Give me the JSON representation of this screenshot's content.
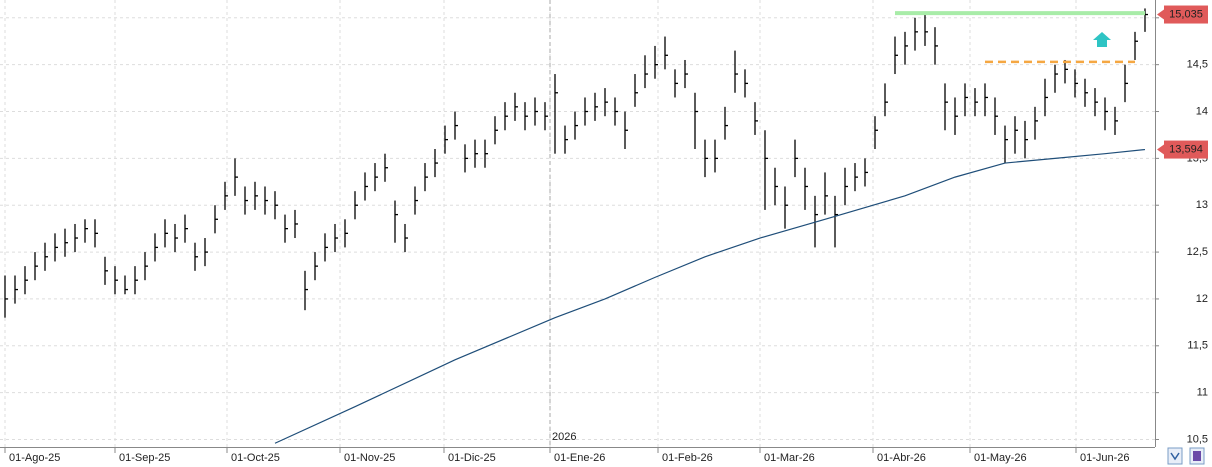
{
  "chart_data": {
    "type": "ohlc",
    "xlim": [
      -0.5,
      115
    ],
    "ylim": [
      10.42,
      15.19
    ],
    "yticks": [
      {
        "value": 10.5,
        "label": "10,5"
      },
      11,
      {
        "value": 11.5,
        "label": "11,5"
      },
      12,
      {
        "value": 12.5,
        "label": "12,5"
      },
      13,
      {
        "value": 13.5,
        "label": "13,5"
      },
      14,
      {
        "value": 14.5,
        "label": "14,5"
      },
      15
    ],
    "xticks": [
      {
        "value": 0,
        "label": "01-Ago-25"
      },
      {
        "value": 11,
        "label": "01-Sep-25"
      },
      {
        "value": 22.2,
        "label": "01-Oct-25"
      },
      {
        "value": 33.5,
        "label": "01-Nov-25"
      },
      {
        "value": 43.9,
        "label": "01-Dic-25"
      },
      {
        "value": 54.5,
        "label": "01-Ene-26"
      },
      {
        "value": 65.3,
        "label": "01-Feb-26"
      },
      {
        "value": 75.5,
        "label": "01-Mar-26"
      },
      {
        "value": 86.8,
        "label": "01-Abr-26"
      },
      {
        "value": 96.5,
        "label": "01-May-26"
      },
      {
        "value": 107.1,
        "label": "01-Jun-26"
      }
    ],
    "year_marker": {
      "value": 54.5,
      "label": "2026"
    },
    "grid": true,
    "bar_color": "#000000",
    "high": [
      12.25,
      12.25,
      12.35,
      12.5,
      12.6,
      12.7,
      12.75,
      12.8,
      12.85,
      12.85,
      12.45,
      12.35,
      12.25,
      12.35,
      12.5,
      12.7,
      12.85,
      12.8,
      12.9,
      12.6,
      12.65,
      13.0,
      13.25,
      13.5,
      13.2,
      13.25,
      13.2,
      13.15,
      12.9,
      12.95,
      12.3,
      12.5,
      12.7,
      12.8,
      12.85,
      13.15,
      13.35,
      13.45,
      13.55,
      13.05,
      12.8,
      13.2,
      13.45,
      13.6,
      13.85,
      14.0,
      13.65,
      13.7,
      13.7,
      13.95,
      14.1,
      14.2,
      14.1,
      14.15,
      14.1,
      14.4,
      13.85,
      14.0,
      14.15,
      14.2,
      14.25,
      14.15,
      14.0,
      14.4,
      14.6,
      14.7,
      14.8,
      14.45,
      14.55,
      14.2,
      13.7,
      13.7,
      14.05,
      14.65,
      14.45,
      14.1,
      13.8,
      13.4,
      13.2,
      13.7,
      13.4,
      13.1,
      13.35,
      13.1,
      13.4,
      13.45,
      13.5,
      13.95,
      14.3,
      14.8,
      14.85,
      15.0,
      15.05,
      14.9,
      14.3,
      14.15,
      14.3,
      14.25,
      14.3,
      14.15,
      13.85,
      13.95,
      13.9,
      14.05,
      14.35,
      14.5,
      14.55,
      14.45,
      14.35,
      14.25,
      14.15,
      14.05,
      14.5,
      14.85,
      15.1
    ],
    "low": [
      11.8,
      11.95,
      12.05,
      12.2,
      12.3,
      12.4,
      12.45,
      12.5,
      12.6,
      12.55,
      12.15,
      12.05,
      12.05,
      12.05,
      12.2,
      12.4,
      12.55,
      12.5,
      12.6,
      12.3,
      12.35,
      12.7,
      12.95,
      13.1,
      12.9,
      12.95,
      12.9,
      12.85,
      12.6,
      12.65,
      11.88,
      12.2,
      12.4,
      12.5,
      12.55,
      12.85,
      13.05,
      13.15,
      13.25,
      12.6,
      12.5,
      12.9,
      13.15,
      13.3,
      13.55,
      13.7,
      13.35,
      13.4,
      13.4,
      13.65,
      13.8,
      13.9,
      13.8,
      13.85,
      13.8,
      13.55,
      13.55,
      13.7,
      13.85,
      13.9,
      13.95,
      13.85,
      13.6,
      14.05,
      14.25,
      14.35,
      14.45,
      14.15,
      14.25,
      13.6,
      13.3,
      13.35,
      13.7,
      14.2,
      14.15,
      13.75,
      12.95,
      13.0,
      12.75,
      13.3,
      12.95,
      12.55,
      12.9,
      12.55,
      13.0,
      13.15,
      13.2,
      13.6,
      13.95,
      14.4,
      14.5,
      14.65,
      14.7,
      14.5,
      13.8,
      13.75,
      13.95,
      13.95,
      13.95,
      13.75,
      13.45,
      13.55,
      13.5,
      13.7,
      13.95,
      14.2,
      14.3,
      14.15,
      14.05,
      13.95,
      13.8,
      13.75,
      14.1,
      14.55,
      14.85
    ],
    "close": [
      12.0,
      12.1,
      12.2,
      12.35,
      12.45,
      12.55,
      12.6,
      12.65,
      12.75,
      12.7,
      12.3,
      12.2,
      12.1,
      12.2,
      12.35,
      12.55,
      12.7,
      12.65,
      12.75,
      12.45,
      12.5,
      12.85,
      13.1,
      13.3,
      13.05,
      13.1,
      13.05,
      13.0,
      12.75,
      12.8,
      12.1,
      12.35,
      12.55,
      12.65,
      12.7,
      13.0,
      13.2,
      13.3,
      13.4,
      12.9,
      12.65,
      13.05,
      13.3,
      13.45,
      13.7,
      13.85,
      13.5,
      13.55,
      13.55,
      13.8,
      13.95,
      14.05,
      13.95,
      14.0,
      13.95,
      14.2,
      13.7,
      13.85,
      14.0,
      14.05,
      14.1,
      14.0,
      13.8,
      14.2,
      14.4,
      14.5,
      14.6,
      14.3,
      14.4,
      14.0,
      13.5,
      13.5,
      13.85,
      14.4,
      14.3,
      13.9,
      13.5,
      13.2,
      13.0,
      13.5,
      13.2,
      12.9,
      13.1,
      12.9,
      13.2,
      13.3,
      13.35,
      13.8,
      14.1,
      14.6,
      14.7,
      14.85,
      14.85,
      14.7,
      14.1,
      13.95,
      14.15,
      14.1,
      14.15,
      13.95,
      13.7,
      13.8,
      13.7,
      13.9,
      14.15,
      14.4,
      14.45,
      14.3,
      14.2,
      14.1,
      14.0,
      13.9,
      14.3,
      14.75,
      15.035
    ],
    "ma": {
      "color": "#1f4e79",
      "x": [
        27,
        35,
        45,
        55,
        60,
        65,
        70,
        75.5,
        82,
        90,
        95,
        100,
        105,
        110,
        114
      ],
      "values": [
        10.46,
        10.85,
        11.35,
        11.8,
        12.0,
        12.23,
        12.45,
        12.65,
        12.85,
        13.1,
        13.3,
        13.45,
        13.5,
        13.55,
        13.594
      ]
    },
    "levels": [
      {
        "value": 15.05,
        "from": 89,
        "to": 114,
        "color": "#a8eca8",
        "dashed": false
      },
      {
        "value": 14.53,
        "from": 98,
        "to": 113,
        "color": "#f5a742",
        "dashed": true
      }
    ],
    "price_labels": [
      {
        "value": 15.035,
        "label": "15,035"
      },
      {
        "value": 13.594,
        "label": "13,594"
      }
    ],
    "price_label_color": "#e05a5a"
  }
}
